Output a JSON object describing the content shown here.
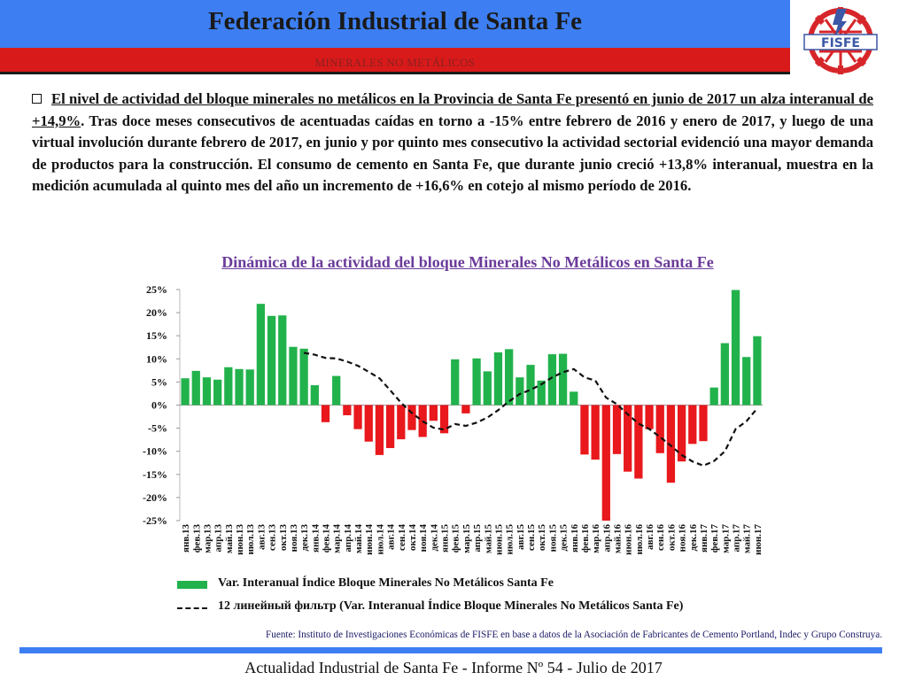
{
  "header": {
    "title": "Federación Industrial de Santa Fe",
    "subtitle": "MINERALES NO METÁLICOS",
    "logo_text": "FISFE",
    "logo_colors": {
      "red": "#d7262a",
      "blue": "#3b57a6"
    }
  },
  "paragraph": {
    "underlined": "El nivel de actividad del bloque minerales no metálicos en la Provincia de Santa Fe presentó en junio de 2017 un alza interanual de +14,9%",
    "rest": ". Tras doce meses consecutivos de acentuadas caídas en torno a -15% entre febrero de 2016 y enero de 2017, y luego de una virtual involución durante febrero de 2017, en junio y por quinto mes consecutivo la actividad sectorial evidenció una mayor demanda de productos para la construcción. El consumo de cemento en Santa Fe, que durante junio creció +13,8% interanual, muestra en la medición acumulada al quinto mes del año un incremento de +16,6% en cotejo al mismo período de 2016."
  },
  "chart_data": {
    "type": "bar",
    "title": "Dinámica de la actividad del bloque Minerales No Metálicos en Santa Fe",
    "ylim": [
      -25,
      25
    ],
    "yticks": [
      25,
      20,
      15,
      10,
      5,
      0,
      -5,
      -10,
      -15,
      -20,
      -25
    ],
    "ytick_labels": [
      "25%",
      "20%",
      "15%",
      "10%",
      "5%",
      "0%",
      "-5%",
      "-10%",
      "-15%",
      "-20%",
      "-25%"
    ],
    "categories": [
      "янв.13",
      "фев.13",
      "мар.13",
      "апр.13",
      "май.13",
      "июн.13",
      "июл.13",
      "авг.13",
      "сен.13",
      "окт.13",
      "ноя.13",
      "дек.13",
      "янв.14",
      "фев.14",
      "мар.14",
      "апр.14",
      "май.14",
      "июн.14",
      "июл.14",
      "авг.14",
      "сен.14",
      "окт.14",
      "ноя.14",
      "дек.14",
      "янв.15",
      "фев.15",
      "мар.15",
      "апр.15",
      "май.15",
      "июн.15",
      "июл.15",
      "авг.15",
      "сен.15",
      "окт.15",
      "ноя.15",
      "дек.15",
      "янв.16",
      "фев.16",
      "мар.16",
      "апр.16",
      "май.16",
      "июн.16",
      "июл.16",
      "авг.16",
      "сен.16",
      "окт.16",
      "ноя.16",
      "дек.16",
      "янв.17",
      "фев.17",
      "мар.17",
      "апр.17",
      "май.17",
      "июн.17"
    ],
    "series": [
      {
        "name": "Var. Interanual Índice Bloque Minerales No Metálicos Santa Fe",
        "type": "bar",
        "positive_color": "#22b24c",
        "negative_color": "#e8181c",
        "values": [
          5.8,
          7.4,
          6.0,
          5.5,
          8.2,
          7.8,
          7.7,
          21.9,
          19.3,
          19.4,
          12.6,
          12.2,
          4.3,
          -3.7,
          6.3,
          -2.2,
          -5.2,
          -7.9,
          -10.8,
          -9.3,
          -7.4,
          -5.4,
          -6.9,
          -3.4,
          -6.1,
          9.9,
          -1.8,
          10.1,
          7.3,
          11.4,
          12.1,
          6.0,
          8.7,
          5.3,
          11.0,
          11.1,
          2.9,
          -10.7,
          -11.8,
          -25.0,
          -10.6,
          -14.4,
          -15.9,
          -5.2,
          -10.4,
          -16.8,
          -12.2,
          -8.4,
          -7.8,
          3.8,
          13.4,
          24.9,
          10.4,
          14.9
        ]
      },
      {
        "name": "12 линейный фильтр (Var. Interanual Índice Bloque Minerales No Metálicos Santa Fe)",
        "type": "line",
        "style": "dashed",
        "color": "#111111",
        "values": [
          null,
          null,
          null,
          null,
          null,
          null,
          null,
          null,
          null,
          null,
          null,
          11.3,
          10.9,
          10.2,
          10.1,
          9.4,
          8.5,
          7.2,
          5.8,
          3.2,
          0.5,
          -1.7,
          -3.5,
          -4.9,
          -5.3,
          -4.1,
          -4.5,
          -3.8,
          -2.7,
          -1.1,
          0.8,
          2.4,
          3.3,
          4.5,
          6.0,
          7.1,
          7.8,
          6.0,
          5.3,
          1.6,
          0.2,
          -2.0,
          -4.0,
          -5.2,
          -6.9,
          -8.8,
          -10.8,
          -12.2,
          -13.1,
          -12.1,
          -10.0,
          -5.2,
          -3.5,
          -0.7
        ]
      }
    ]
  },
  "legend": {
    "bar_label": "Var. Interanual Índice Bloque Minerales No Metálicos Santa Fe",
    "line_label": "12 линейный фильтр (Var. Interanual Índice Bloque Minerales No Metálicos Santa Fe)"
  },
  "source": "Fuente: Instituto de Investigaciones Económicas de FISFE en base a datos de la Asociación de Fabricantes de Cemento Portland, Indec y Grupo Construya.",
  "footer": "Actualidad Industrial de Santa Fe - Informe Nº 54 - Julio de 2017"
}
